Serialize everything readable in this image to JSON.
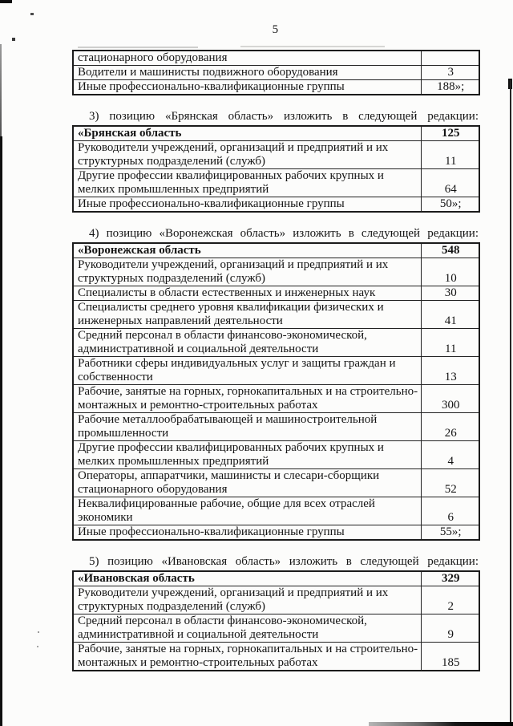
{
  "page": {
    "number": "5"
  },
  "sections": [
    {
      "name": "continuation-fragment",
      "rows": [
        {
          "label": "стационарного оборудования",
          "value": ""
        },
        {
          "label": "Водители и машинисты подвижного оборудования",
          "value": "3"
        },
        {
          "label": "Иные профессионально-квалификационные группы",
          "value": "188»;"
        }
      ]
    },
    {
      "name": "bryansk-region",
      "intro": "3) позицию «Брянская область» изложить в следующей редакции:",
      "header": {
        "label": "«Брянская область",
        "value": "125"
      },
      "rows": [
        {
          "label": "Руководители учреждений, организаций и предприятий и их структурных подразделений (служб)",
          "value": "11"
        },
        {
          "label": "Другие профессии квалифицированных рабочих крупных и мелких промышленных предприятий",
          "value": "64"
        },
        {
          "label": "Иные профессионально-квалификационные группы",
          "value": "50»;"
        }
      ]
    },
    {
      "name": "voronezh-region",
      "intro": "4) позицию «Воронежская область» изложить в следующей редакции:",
      "header": {
        "label": "«Воронежская область",
        "value": "548"
      },
      "rows": [
        {
          "label": "Руководители учреждений, организаций и предприятий и их структурных подразделений (служб)",
          "value": "10"
        },
        {
          "label": "Специалисты в области естественных и инженерных наук",
          "value": "30"
        },
        {
          "label": "Специалисты среднего уровня квалификации физических и инженерных направлений деятельности",
          "value": "41"
        },
        {
          "label": "Средний персонал в области финансово-экономической, административной и социальной деятельности",
          "value": "11"
        },
        {
          "label": "Работники сферы индивидуальных услуг и защиты граждан и собственности",
          "value": "13"
        },
        {
          "label": "Рабочие, занятые на горных, горнокапитальных и на строительно-монтажных и ремонтно-строительных работах",
          "value": "300"
        },
        {
          "label": "Рабочие металлообрабатывающей и машиностроительной промышленности",
          "value": "26"
        },
        {
          "label": "Другие профессии квалифицированных рабочих крупных и мелких промышленных предприятий",
          "value": "4"
        },
        {
          "label": "Операторы, аппаратчики, машинисты и слесари-сборщики стационарного оборудования",
          "value": "52"
        },
        {
          "label": "Неквалифицированные рабочие, общие для всех отраслей экономики",
          "value": "6"
        },
        {
          "label": "Иные профессионально-квалификационные группы",
          "value": "55»;"
        }
      ]
    },
    {
      "name": "ivanovo-region",
      "intro": "5) позицию «Ивановская область» изложить в следующей редакции:",
      "header": {
        "label": "«Ивановская область",
        "value": "329"
      },
      "rows": [
        {
          "label": "Руководители учреждений, организаций и предприятий и их структурных подразделений (служб)",
          "value": "2"
        },
        {
          "label": "Средний персонал в области финансово-экономической, административной и социальной деятельности",
          "value": "9"
        },
        {
          "label": "Рабочие, занятые на горных, горнокапитальных и на строительно-монтажных и ремонтно-строительных работах",
          "value": "185"
        }
      ]
    }
  ]
}
